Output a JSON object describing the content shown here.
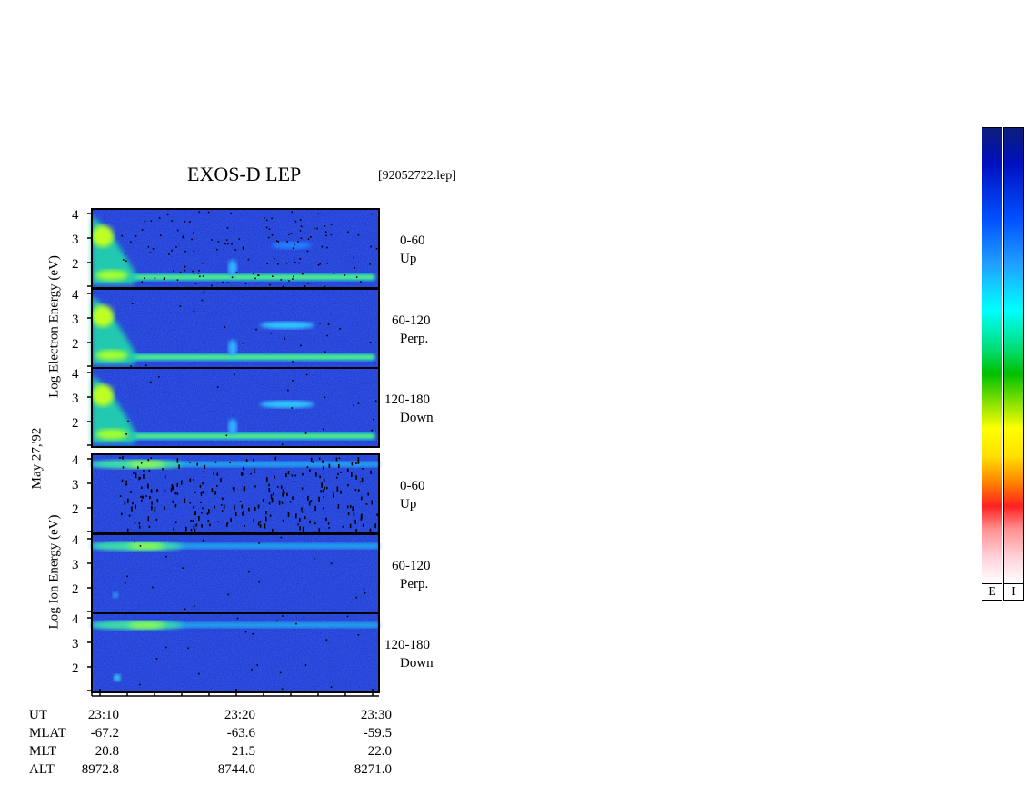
{
  "header": {
    "title": "EXOS-D LEP",
    "file": "[92052722.lep]"
  },
  "left_labels": {
    "electron": "Log  Electron  Energy  (eV)",
    "date": "May 27,'92",
    "ion": "Log   Ion   Energy  (eV)"
  },
  "panels": [
    {
      "species": "electron",
      "angle": "0-60",
      "direction": "Up"
    },
    {
      "species": "electron",
      "angle": "60-120",
      "direction": "Perp."
    },
    {
      "species": "electron",
      "angle": "120-180",
      "direction": "Down"
    },
    {
      "species": "ion",
      "angle": "0-60",
      "direction": "Up"
    },
    {
      "species": "ion",
      "angle": "60-120",
      "direction": "Perp."
    },
    {
      "species": "ion",
      "angle": "120-180",
      "direction": "Down"
    }
  ],
  "y_ticks": [
    "4",
    "3",
    "2"
  ],
  "table": {
    "rows": [
      {
        "label": "UT",
        "values": [
          "23:10",
          "23:20",
          "23:30"
        ]
      },
      {
        "label": "MLAT",
        "values": [
          "-67.2",
          "-63.6",
          "-59.5"
        ]
      },
      {
        "label": "MLT",
        "values": [
          "20.8",
          "21.5",
          "22.0"
        ]
      },
      {
        "label": "ALT",
        "values": [
          "8972.8",
          "8744.0",
          "8271.0"
        ]
      }
    ]
  },
  "colorbars": [
    {
      "label": "E"
    },
    {
      "label": "I"
    }
  ],
  "colors": {
    "background_spectrum": "#1428c8",
    "colormap": [
      "#ffffff",
      "#ffd0d8",
      "#ff9090",
      "#ff2020",
      "#ff8000",
      "#ffe000",
      "#ffff00",
      "#80e000",
      "#00c000",
      "#00e080",
      "#00ffff",
      "#20a0ff",
      "#0050ff",
      "#0010c0",
      "#000060"
    ]
  },
  "chart_data": {
    "type": "heatmap",
    "title": "EXOS-D LEP",
    "xlabel": "UT",
    "ylabel": "Log Energy (eV)",
    "x_ticks": [
      "23:10",
      "23:20",
      "23:30"
    ],
    "y_ticks": [
      2,
      3,
      4
    ],
    "ylim": [
      1,
      4
    ],
    "series": [
      {
        "name": "0-60 Up",
        "species": "Electron"
      },
      {
        "name": "60-120 Perp.",
        "species": "Electron"
      },
      {
        "name": "120-180 Down",
        "species": "Electron"
      },
      {
        "name": "0-60 Up",
        "species": "Ion"
      },
      {
        "name": "60-120 Perp.",
        "species": "Ion"
      },
      {
        "name": "120-180 Down",
        "species": "Ion"
      }
    ]
  }
}
